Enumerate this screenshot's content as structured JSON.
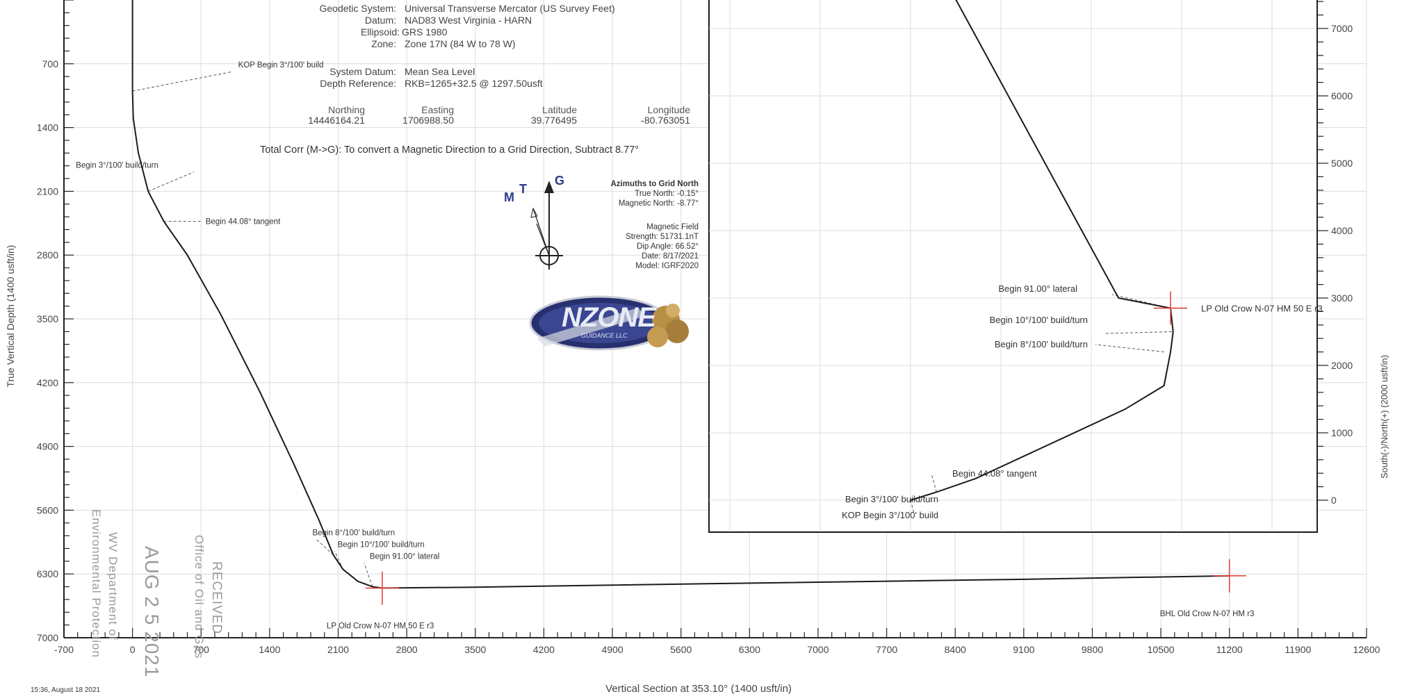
{
  "header": {
    "geodetic_system_label": "Geodetic System:",
    "geodetic_system": "Universal Transverse Mercator (US Survey Feet)",
    "datum_label": "Datum:",
    "datum": "NAD83 West Virginia - HARN",
    "ellipsoid_label": "Ellipsoid:",
    "ellipsoid": "GRS 1980",
    "zone_label": "Zone:",
    "zone": "Zone 17N (84 W to 78 W)",
    "system_datum_label": "System Datum:",
    "system_datum": "Mean Sea Level",
    "depth_reference_label": "Depth Reference:",
    "depth_reference": "RKB=1265+32.5 @ 1297.50usft",
    "coords": {
      "northing_label": "Northing",
      "northing": "14446164.21",
      "easting_label": "Easting",
      "easting": "1706988.50",
      "latitude_label": "Latitude",
      "latitude": "39.776495",
      "longitude_label": "Longitude",
      "longitude": "-80.763051"
    },
    "total_corr": "Total Corr (M->G):  To convert a Magnetic Direction to a Grid Direction, Subtract 8.77°"
  },
  "north_arrow": {
    "m": "M",
    "t": "T",
    "g": "G"
  },
  "azimuth_block": {
    "title": "Azimuths to Grid North",
    "true_north": "True North: -0.15°",
    "magnetic_north": "Magnetic North: -8.77°",
    "field_title": "Magnetic Field",
    "strength": "Strength: 51731.1nT",
    "dip": "Dip Angle: 66.52°",
    "date": "Date: 8/17/2021",
    "model": "Model: IGRF2020"
  },
  "logo": {
    "text": "NZONE",
    "subtext": "GUIDANCE LLC"
  },
  "stamps": {
    "received": "RECEIVED",
    "office": "Office of Oil and Gas",
    "date": "AUG 2 5 2021",
    "dept": "WV Department of",
    "env": "Environmental Protection"
  },
  "footer": {
    "timestamp": "15:36, August 18 2021"
  },
  "accent_colors": {
    "target_marker": "#e0463c",
    "wellpath": "#1a1a1a",
    "grid": "#d9dce0"
  },
  "chart_data": [
    {
      "type": "line",
      "xlabel": "Vertical Section at 353.10° (1400 usft/in)",
      "ylabel": "True Vertical Depth (1400 usft/in)",
      "xlim": [
        -700,
        12600
      ],
      "ylim": [
        7000,
        0
      ],
      "xticks": [
        -700,
        0,
        700,
        1400,
        2100,
        2800,
        3500,
        4200,
        4900,
        5600,
        6300,
        7000,
        7700,
        8400,
        9100,
        9800,
        10500,
        11200,
        11900,
        12600
      ],
      "xtick_labels": [
        "-700",
        "0",
        "700",
        "1400",
        "2100",
        "2800",
        "3500",
        "4200",
        "4900",
        "5600",
        "6300",
        "7000",
        "7700",
        "8400",
        "9100",
        "9800",
        "10500",
        "11200",
        "11900",
        "12600"
      ],
      "yticks": [
        700,
        1400,
        2100,
        2800,
        3500,
        4200,
        4900,
        5600,
        6300,
        7000
      ],
      "ytick_labels": [
        "700",
        "1400",
        "2100",
        "2800",
        "3500",
        "4200",
        "4900",
        "5600",
        "6300",
        "7000"
      ],
      "grid": true,
      "series": [
        {
          "x": [
            0,
            0,
            8,
            60,
            160,
            320,
            560,
            900,
            1300,
            1650,
            1900,
            2050,
            2150,
            2300,
            2450,
            2550,
            3500,
            6000,
            9000,
            11200
          ],
          "y": [
            0,
            1000,
            1300,
            1680,
            2100,
            2430,
            2800,
            3450,
            4300,
            5100,
            5700,
            6090,
            6250,
            6380,
            6440,
            6455,
            6445,
            6405,
            6360,
            6320
          ]
        }
      ],
      "targets": [
        {
          "label": "LP Old Crow N-07 HM 50 E r3",
          "x": 2550,
          "y": 6455
        },
        {
          "label": "BHL Old Crow N-07 HM r3",
          "x": 11200,
          "y": 6320
        }
      ],
      "annotations": [
        {
          "text": "KOP Begin 3°/100' build",
          "x": 0,
          "y": 1000
        },
        {
          "text": "Begin 3°/100' build/turn",
          "x": 160,
          "y": 2100
        },
        {
          "text": "Begin 44.08° tangent",
          "x": 320,
          "y": 2430
        },
        {
          "text": "Begin 8°/100' build/turn",
          "x": 2050,
          "y": 6090
        },
        {
          "text": "Begin 10°/100' build/turn",
          "x": 2150,
          "y": 6250
        },
        {
          "text": "Begin 91.00° lateral",
          "x": 2450,
          "y": 6440
        }
      ]
    },
    {
      "type": "line",
      "ylabel": "South(-)/North(+) (2000 usft/in)",
      "ylim": [
        -500,
        7600
      ],
      "yticks": [
        0,
        1000,
        2000,
        3000,
        4000,
        5000,
        6000,
        7000
      ],
      "ytick_labels": [
        "0",
        "1000",
        "2000",
        "3000",
        "4000",
        "5000",
        "6000",
        "7000"
      ],
      "grid": true,
      "series": [
        {
          "x": [
            0,
            200,
            500,
            1650,
            1950,
            2000,
            2020,
            2000,
            1600,
            300
          ],
          "y": [
            0,
            120,
            320,
            1350,
            1700,
            2200,
            2500,
            2850,
            3000,
            7600
          ]
        }
      ],
      "targets": [
        {
          "label": "LP Old Crow N-07 HM 50 E r3",
          "x": 2000,
          "y": 2850
        }
      ],
      "annotations": [
        {
          "text": "KOP Begin 3°/100' build",
          "x": 0,
          "y": 0
        },
        {
          "text": "Begin 3°/100' build/turn",
          "x": 100,
          "y": 60
        },
        {
          "text": "Begin 44.08° tangent",
          "x": 200,
          "y": 120
        },
        {
          "text": "Begin 8°/100' build/turn",
          "x": 1950,
          "y": 2200
        },
        {
          "text": "Begin 10°/100' build/turn",
          "x": 2010,
          "y": 2500
        },
        {
          "text": "Begin 91.00° lateral",
          "x": 2000,
          "y": 2850
        }
      ]
    }
  ]
}
